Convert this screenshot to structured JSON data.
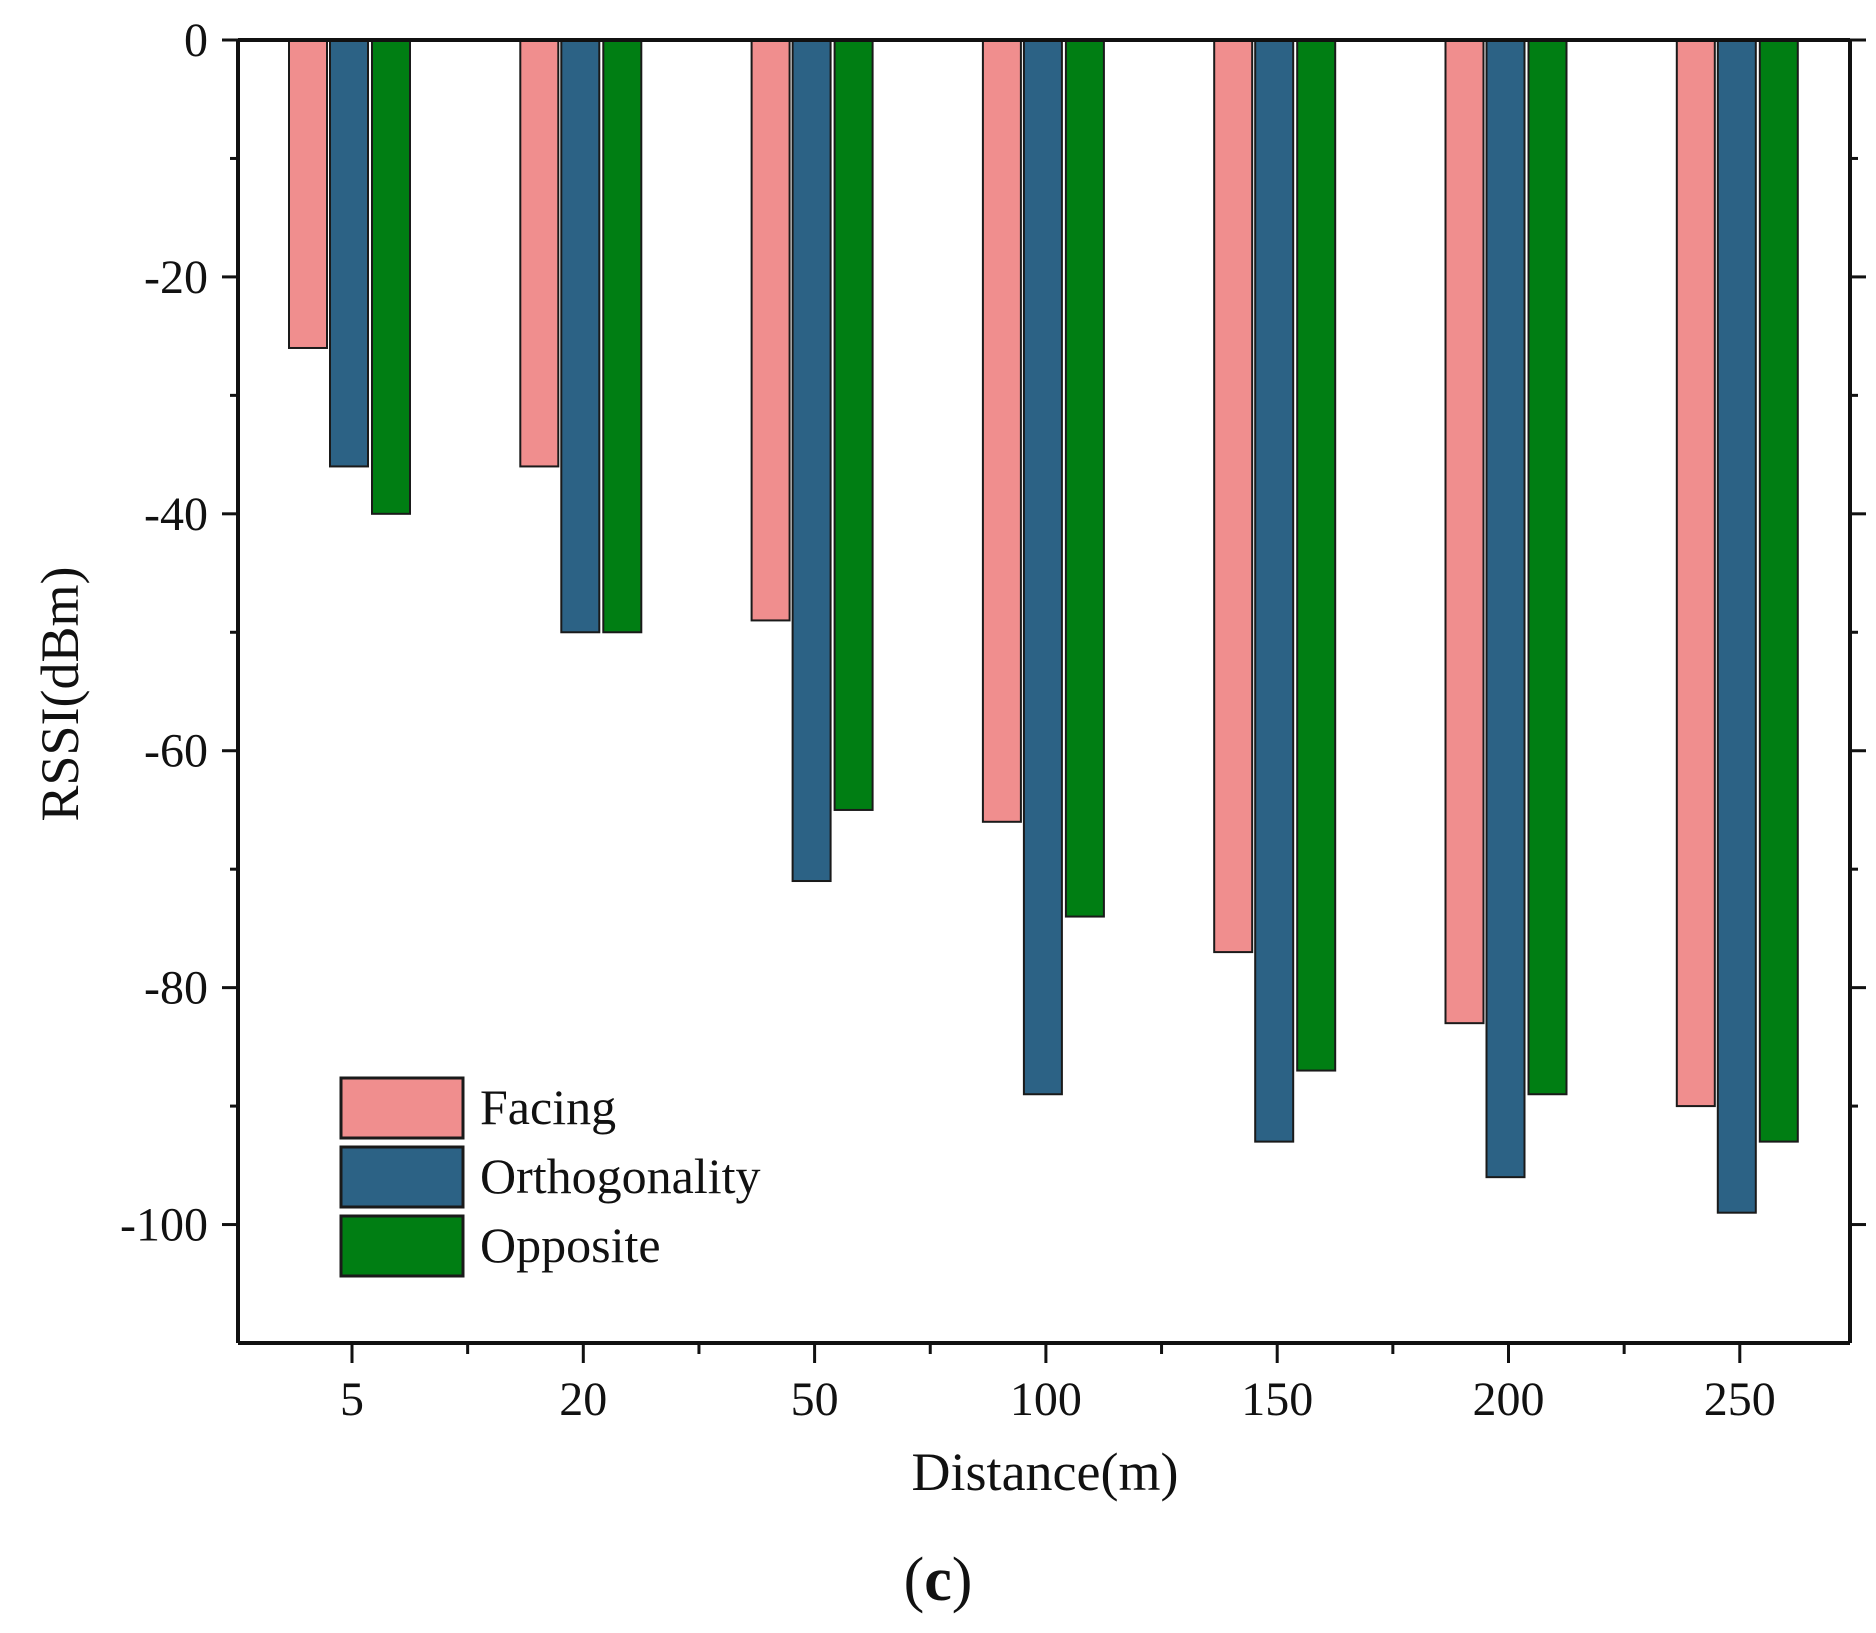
{
  "chart_data": {
    "type": "bar",
    "title": "",
    "xlabel": "Distance(m)",
    "ylabel": "RSSI(dBm)",
    "categories": [
      "5",
      "20",
      "50",
      "100",
      "150",
      "200",
      "250"
    ],
    "ylim": [
      -110,
      0
    ],
    "yticks": [
      0,
      -20,
      -40,
      -60,
      -80,
      -100
    ],
    "ytick_labels": [
      "0",
      "-20",
      "-40",
      "-60",
      "-80",
      "-100"
    ],
    "grid": false,
    "legend_position": "bottom-left",
    "series": [
      {
        "name": "Facing",
        "color": "#f08e8e",
        "values": [
          -26,
          -36,
          -49,
          -66,
          -77,
          -83,
          -90
        ]
      },
      {
        "name": "Orthogonality",
        "color": "#2c6285",
        "values": [
          -36,
          -50,
          -71,
          -89,
          -93,
          -96,
          -99
        ]
      },
      {
        "name": "Opposite",
        "color": "#007e13",
        "values": [
          -40,
          -50,
          -65,
          -74,
          -87,
          -89,
          -93
        ]
      }
    ],
    "panel_label": {
      "open": "(",
      "letter": "c",
      "close": ")"
    }
  }
}
